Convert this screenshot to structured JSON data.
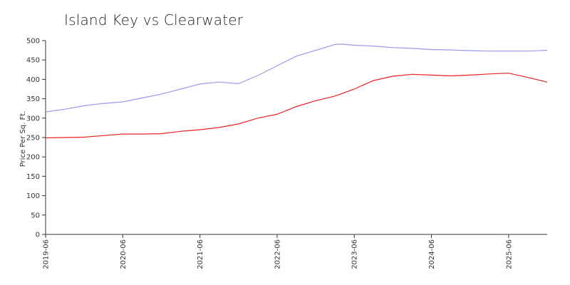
{
  "chart_data": {
    "type": "line",
    "title": "Island Key vs Clearwater",
    "xlabel": "",
    "ylabel": "Price Per Sq. Ft.",
    "ylim": [
      0,
      500
    ],
    "yticks": [
      0,
      50,
      100,
      150,
      200,
      250,
      300,
      350,
      400,
      450,
      500
    ],
    "xticks": [
      "2019-06",
      "2020-06",
      "2021-06",
      "2022-06",
      "2023-06",
      "2024-06",
      "2025-06"
    ],
    "x_start": "2019-06",
    "x_end": "2025-12",
    "grid": false,
    "series": [
      {
        "color": "#9999ee",
        "values": [
          [
            "2019-06",
            316
          ],
          [
            "2019-09",
            323
          ],
          [
            "2019-12",
            332
          ],
          [
            "2020-03",
            338
          ],
          [
            "2020-06",
            342
          ],
          [
            "2020-09",
            352
          ],
          [
            "2020-12",
            362
          ],
          [
            "2021-03",
            375
          ],
          [
            "2021-06",
            388
          ],
          [
            "2021-09",
            393
          ],
          [
            "2021-12",
            389
          ],
          [
            "2022-03",
            410
          ],
          [
            "2022-06",
            435
          ],
          [
            "2022-09",
            460
          ],
          [
            "2022-12",
            475
          ],
          [
            "2023-03",
            490
          ],
          [
            "2023-04",
            491
          ],
          [
            "2023-06",
            488
          ],
          [
            "2023-09",
            486
          ],
          [
            "2023-12",
            482
          ],
          [
            "2024-03",
            480
          ],
          [
            "2024-06",
            477
          ],
          [
            "2024-09",
            476
          ],
          [
            "2024-12",
            474
          ],
          [
            "2025-03",
            473
          ],
          [
            "2025-06",
            473
          ],
          [
            "2025-09",
            473
          ],
          [
            "2025-12",
            475
          ]
        ]
      },
      {
        "color": "#ee2222",
        "values": [
          [
            "2019-06",
            249
          ],
          [
            "2019-09",
            250
          ],
          [
            "2019-12",
            251
          ],
          [
            "2020-03",
            255
          ],
          [
            "2020-06",
            259
          ],
          [
            "2020-09",
            259
          ],
          [
            "2020-12",
            260
          ],
          [
            "2021-03",
            266
          ],
          [
            "2021-06",
            270
          ],
          [
            "2021-09",
            276
          ],
          [
            "2021-12",
            285
          ],
          [
            "2022-03",
            300
          ],
          [
            "2022-06",
            310
          ],
          [
            "2022-09",
            330
          ],
          [
            "2022-12",
            345
          ],
          [
            "2023-03",
            357
          ],
          [
            "2023-06",
            375
          ],
          [
            "2023-09",
            397
          ],
          [
            "2023-12",
            408
          ],
          [
            "2024-03",
            413
          ],
          [
            "2024-06",
            411
          ],
          [
            "2024-09",
            409
          ],
          [
            "2024-12",
            411
          ],
          [
            "2025-03",
            414
          ],
          [
            "2025-06",
            416
          ],
          [
            "2025-09",
            405
          ],
          [
            "2025-12",
            393
          ]
        ]
      }
    ]
  }
}
